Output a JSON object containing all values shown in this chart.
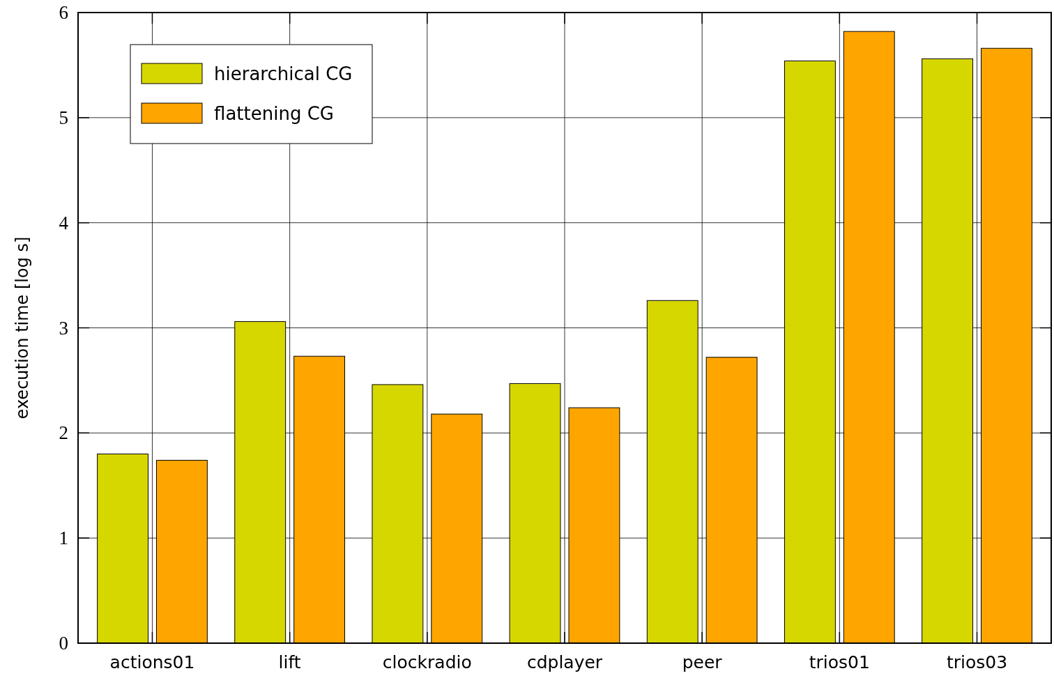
{
  "chart_data": {
    "type": "bar",
    "ylabel": "execution time [log s]",
    "categories": [
      "actions01",
      "lift",
      "clockradio",
      "cdplayer",
      "peer",
      "trios01",
      "trios03"
    ],
    "series": [
      {
        "name": "hierarchical CG",
        "color": "#d7d700",
        "values": [
          1.8,
          3.06,
          2.46,
          2.47,
          3.26,
          5.54,
          5.56
        ]
      },
      {
        "name": "flattening CG",
        "color": "#ffa500",
        "values": [
          1.74,
          2.73,
          2.18,
          2.24,
          2.72,
          5.82,
          5.66
        ]
      }
    ],
    "ylim": [
      0,
      6
    ],
    "yticks": [
      0,
      1,
      2,
      3,
      4,
      5,
      6
    ],
    "grid": true,
    "legend": "top left"
  }
}
